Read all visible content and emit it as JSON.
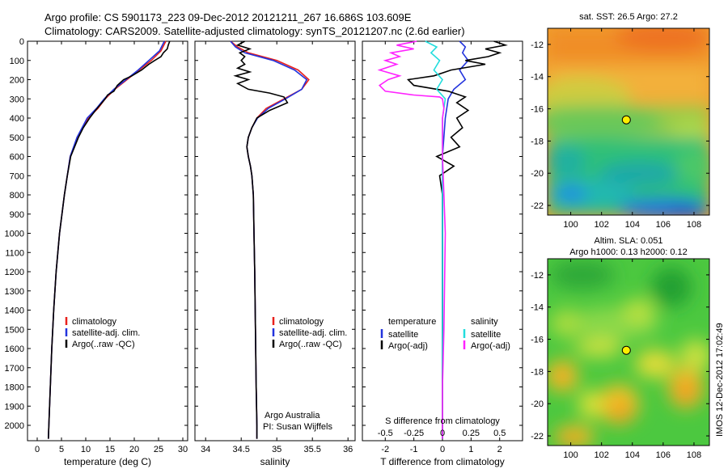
{
  "header": {
    "title_line1": "Argo profile: CS 5901173_223 09-Dec-2012 20121211_267 16.686S 103.609E",
    "title_line2": "Climatology: CARS2009. Satellite-adjusted climatology: synTS_20121207.nc (2.6d earlier)"
  },
  "colors": {
    "climatology": "#e8201c",
    "satellite": "#2233dd",
    "argo": "#000000",
    "salinity_satellite": "#22dddd",
    "salinity_argo": "#ff22ff"
  },
  "chart_data": [
    {
      "type": "line",
      "name": "temperature-profile",
      "xlabel": "temperature (deg C)",
      "ylabel": "",
      "xlim": [
        -2,
        31
      ],
      "ylim": [
        2080,
        0
      ],
      "xticks": [
        0,
        5,
        10,
        15,
        20,
        25,
        30
      ],
      "xtick_labels": [
        "0",
        "5",
        "10",
        "15",
        "20",
        "25",
        "30"
      ],
      "yticks": [
        0,
        100,
        200,
        300,
        400,
        500,
        600,
        700,
        800,
        900,
        1000,
        1100,
        1200,
        1300,
        1400,
        1500,
        1600,
        1700,
        1800,
        1900,
        2000
      ],
      "ytick_labels": [
        "0",
        "100",
        "200",
        "300",
        "400",
        "500",
        "600",
        "700",
        "800",
        "900",
        "1000",
        "1100",
        "1200",
        "1300",
        "1400",
        "1500",
        "1600",
        "1700",
        "1800",
        "1900",
        "2000"
      ],
      "legend": {
        "position": "lower-middle",
        "entries": [
          {
            "label": "climatology",
            "color": "#e8201c"
          },
          {
            "label": "satellite-adj. clim.",
            "color": "#2233dd"
          },
          {
            "label": "Argo(..raw -QC)",
            "color": "#000000"
          }
        ]
      },
      "series": [
        {
          "name": "climatology",
          "color": "#e8201c",
          "depth": [
            0,
            50,
            100,
            150,
            200,
            250,
            300,
            350,
            400,
            500,
            600,
            700,
            800,
            900,
            1000,
            1200,
            1400,
            1600,
            1800,
            2000,
            2070
          ],
          "values": [
            26.5,
            25.5,
            23.5,
            21,
            18.5,
            16,
            14,
            12.5,
            10.5,
            8.3,
            6.8,
            6.2,
            5.6,
            5.1,
            4.6,
            3.9,
            3.4,
            3.0,
            2.7,
            2.4,
            2.3
          ]
        },
        {
          "name": "satellite-adj. clim.",
          "color": "#2233dd",
          "depth": [
            0,
            50,
            100,
            150,
            200,
            250,
            300,
            350,
            400,
            500,
            600,
            700,
            800,
            900,
            1000,
            1200,
            1400,
            1600,
            1800,
            2000,
            2070
          ],
          "values": [
            26.2,
            25.2,
            23.0,
            20.8,
            18.3,
            15.8,
            13.8,
            12.2,
            10.3,
            8.2,
            6.8,
            6.2,
            5.6,
            5.1,
            4.6,
            3.9,
            3.4,
            3.0,
            2.7,
            2.4,
            2.3
          ]
        },
        {
          "name": "Argo(..raw -QC)",
          "color": "#000000",
          "depth": [
            0,
            20,
            40,
            60,
            80,
            100,
            120,
            150,
            180,
            200,
            230,
            260,
            280,
            300,
            330,
            360,
            400,
            450,
            500,
            600,
            700,
            800,
            900,
            1000,
            1200,
            1400,
            1600,
            1800,
            2000,
            2070
          ],
          "values": [
            27.3,
            27.0,
            26.8,
            26.0,
            25.5,
            24.2,
            23.0,
            21.5,
            19.5,
            17.8,
            16.5,
            15.8,
            14.5,
            14.0,
            13.0,
            12.0,
            10.8,
            9.5,
            8.5,
            6.9,
            6.2,
            5.6,
            5.1,
            4.6,
            3.9,
            3.4,
            3.0,
            2.7,
            2.4,
            2.3
          ]
        }
      ]
    },
    {
      "type": "line",
      "name": "salinity-profile",
      "xlabel": "salinity",
      "xlim": [
        33.85,
        36.1
      ],
      "ylim": [
        2080,
        0
      ],
      "xticks": [
        34,
        34.5,
        35,
        35.5,
        36
      ],
      "xtick_labels": [
        "34",
        "34.5",
        "35",
        "35.5",
        "36"
      ],
      "legend": {
        "position": "lower-right",
        "entries": [
          {
            "label": "climatology",
            "color": "#e8201c"
          },
          {
            "label": "satellite-adj. clim.",
            "color": "#2233dd"
          },
          {
            "label": "Argo(..raw -QC)",
            "color": "#000000"
          }
        ]
      },
      "annotation_line1": "Argo Australia",
      "annotation_line2": "PI: Susan Wijffels",
      "series": [
        {
          "name": "climatology",
          "color": "#e8201c",
          "depth": [
            0,
            30,
            60,
            100,
            150,
            200,
            250,
            300,
            350,
            400,
            450,
            500,
            550,
            600,
            650,
            700,
            800,
            1000,
            1200,
            1500,
            1800,
            2000,
            2070
          ],
          "values": [
            34.35,
            34.45,
            34.6,
            35.0,
            35.3,
            35.45,
            35.35,
            35.1,
            34.85,
            34.72,
            34.65,
            34.6,
            34.58,
            34.6,
            34.63,
            34.65,
            34.67,
            34.68,
            34.69,
            34.7,
            34.71,
            34.72,
            34.72
          ]
        },
        {
          "name": "satellite-adj. clim.",
          "color": "#2233dd",
          "depth": [
            0,
            30,
            60,
            100,
            150,
            200,
            250,
            300,
            350,
            400,
            450,
            500,
            550,
            600,
            650,
            700,
            800,
            1000,
            1200,
            1500,
            1800,
            2000,
            2070
          ],
          "values": [
            34.35,
            34.42,
            34.55,
            34.95,
            35.25,
            35.42,
            35.35,
            35.12,
            34.88,
            34.73,
            34.65,
            34.6,
            34.58,
            34.6,
            34.63,
            34.65,
            34.67,
            34.68,
            34.69,
            34.7,
            34.71,
            34.72,
            34.72
          ]
        },
        {
          "name": "Argo(..raw -QC)",
          "color": "#000000",
          "depth": [
            0,
            20,
            40,
            60,
            80,
            100,
            120,
            140,
            160,
            180,
            200,
            220,
            250,
            270,
            290,
            320,
            360,
            400,
            450,
            500,
            550,
            600,
            650,
            700,
            800,
            1000,
            1200,
            1500,
            1800,
            2000,
            2070
          ],
          "values": [
            34.55,
            34.45,
            34.62,
            34.48,
            34.55,
            34.5,
            34.55,
            34.45,
            34.62,
            34.42,
            34.6,
            34.45,
            34.6,
            34.9,
            35.1,
            35.15,
            34.9,
            34.72,
            34.65,
            34.6,
            34.58,
            34.6,
            34.63,
            34.65,
            34.67,
            34.68,
            34.69,
            34.7,
            34.71,
            34.72,
            34.72
          ]
        }
      ]
    },
    {
      "type": "line",
      "name": "difference-profile",
      "xlabel": "T difference from climatology",
      "xlabel_top": "S difference from climatology",
      "xlim": [
        -2.8,
        2.8
      ],
      "ylim": [
        2080,
        0
      ],
      "xticks": [
        -2,
        -1,
        0,
        1,
        2
      ],
      "xtick_labels": [
        "-2",
        "-1",
        "0",
        "1",
        "2"
      ],
      "s_tick_positions": [
        -2,
        -1,
        0,
        1,
        2
      ],
      "s_tick_labels": [
        "-0.5",
        "-0.25",
        "0",
        "0.25",
        "0.5"
      ],
      "legend": {
        "position": "lower",
        "temperature_title": "temperature",
        "salinity_title": "salinity",
        "entries": [
          {
            "label": "satellite",
            "color": "#2233dd"
          },
          {
            "label": "Argo(-adj)",
            "color": "#000000"
          },
          {
            "label": "satellite",
            "color": "#22dddd"
          },
          {
            "label": "Argo(-adj)",
            "color": "#ff22ff"
          }
        ]
      },
      "series": [
        {
          "name": "temperature satellite",
          "color": "#2233dd",
          "depth": [
            0,
            30,
            60,
            100,
            150,
            200,
            250,
            300,
            400,
            600,
            800,
            1000,
            1500,
            2070
          ],
          "values": [
            0.6,
            0.8,
            0.7,
            0.9,
            0.6,
            0.8,
            0.4,
            0.2,
            0.1,
            0.0,
            0.0,
            0.0,
            0.0,
            0.0
          ]
        },
        {
          "name": "temperature Argo(-adj)",
          "color": "#000000",
          "depth": [
            0,
            20,
            40,
            60,
            80,
            100,
            120,
            150,
            180,
            200,
            230,
            260,
            290,
            320,
            360,
            400,
            450,
            500,
            550,
            600,
            650,
            700,
            800,
            1000,
            1500,
            2070
          ],
          "values": [
            1.8,
            2.2,
            1.5,
            2.0,
            1.6,
            0.8,
            1.5,
            0.3,
            -0.3,
            -1.2,
            -1.0,
            0.2,
            0.8,
            0.5,
            0.9,
            0.5,
            0.7,
            0.3,
            0.6,
            -0.2,
            0.4,
            -0.1,
            0.0,
            0.0,
            0.0,
            0.0
          ]
        },
        {
          "name": "salinity satellite",
          "color": "#22dddd",
          "depth": [
            0,
            30,
            60,
            100,
            150,
            200,
            250,
            300,
            400,
            600,
            800,
            1000,
            1500,
            2070
          ],
          "values": [
            -0.6,
            -0.2,
            -0.4,
            -0.1,
            -0.3,
            0.0,
            -0.2,
            0.1,
            0.0,
            0.0,
            0.0,
            0.0,
            0.0,
            0.0
          ]
        },
        {
          "name": "salinity Argo(-adj)",
          "color": "#ff22ff",
          "depth": [
            0,
            20,
            40,
            60,
            80,
            100,
            120,
            150,
            180,
            200,
            230,
            260,
            280,
            290,
            300,
            350,
            400,
            600,
            800,
            1000,
            1500,
            1800,
            2070
          ],
          "values": [
            -0.9,
            -1.6,
            -1.0,
            -1.8,
            -1.5,
            -2.0,
            -1.6,
            -2.2,
            -1.5,
            -1.9,
            -2.2,
            -2.0,
            -1.0,
            -0.1,
            0.0,
            0.05,
            0.0,
            0.0,
            0.05,
            0.1,
            0.05,
            0.0,
            0.0
          ]
        }
      ]
    },
    {
      "type": "heatmap",
      "name": "sst-map",
      "title": "sat. SST: 26.5  Argo: 27.2",
      "xlim": [
        98.5,
        109
      ],
      "ylim": [
        -22.6,
        -11
      ],
      "xticks": [
        100,
        102,
        104,
        106,
        108
      ],
      "xtick_labels": [
        "100",
        "102",
        "104",
        "106",
        "108"
      ],
      "yticks": [
        -12,
        -14,
        -16,
        -18,
        -20,
        -22
      ],
      "ytick_labels": [
        "-12",
        "-14",
        "-16",
        "-18",
        "-20",
        "-22"
      ],
      "marker": {
        "lon": 103.609,
        "lat": -16.686
      }
    },
    {
      "type": "heatmap",
      "name": "sla-map",
      "title_line1": "Altim. SLA: 0.051",
      "title_line2": "Argo h1000: 0.13  h2000: 0.12",
      "xlim": [
        98.5,
        109
      ],
      "ylim": [
        -22.6,
        -11
      ],
      "xticks": [
        100,
        102,
        104,
        106,
        108
      ],
      "xtick_labels": [
        "100",
        "102",
        "104",
        "106",
        "108"
      ],
      "yticks": [
        -12,
        -14,
        -16,
        -18,
        -20,
        -22
      ],
      "ytick_labels": [
        "-12",
        "-14",
        "-16",
        "-18",
        "-20",
        "-22"
      ],
      "marker": {
        "lon": 103.609,
        "lat": -16.686
      }
    }
  ],
  "footer": {
    "side_label": "IMOS 12-Dec-2012 17:02:49"
  }
}
